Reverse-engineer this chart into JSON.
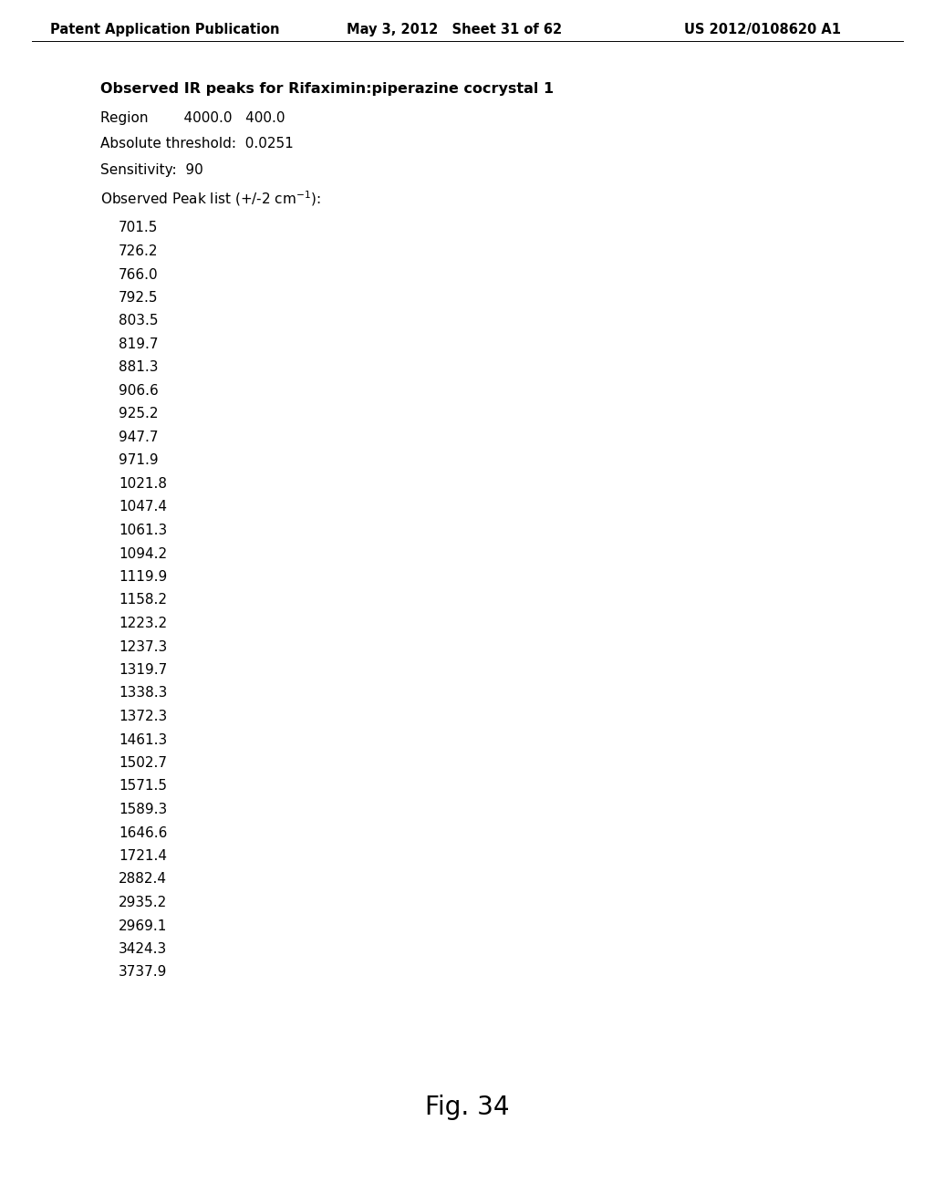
{
  "background_color": "#ffffff",
  "header_left": "Patent Application Publication",
  "header_middle": "May 3, 2012   Sheet 31 of 62",
  "header_right": "US 2012/0108620 A1",
  "title": "Observed IR peaks for Rifaximin:piperazine cocrystal 1",
  "line1": "Region        4000.0   400.0",
  "line2": "Absolute threshold:  0.0251",
  "line3": "Sensitivity:  90",
  "peaks": [
    "701.5",
    "726.2",
    "766.0",
    "792.5",
    "803.5",
    "819.7",
    "881.3",
    "906.6",
    "925.2",
    "947.7",
    "971.9",
    "1021.8",
    "1047.4",
    "1061.3",
    "1094.2",
    "1119.9",
    "1158.2",
    "1223.2",
    "1237.3",
    "1319.7",
    "1338.3",
    "1372.3",
    "1461.3",
    "1502.7",
    "1571.5",
    "1589.3",
    "1646.6",
    "1721.4",
    "2882.4",
    "2935.2",
    "2969.1",
    "3424.3",
    "3737.9"
  ],
  "fig_label": "Fig. 34",
  "header_fontsize": 10.5,
  "title_fontsize": 11.5,
  "body_fontsize": 11,
  "peak_fontsize": 11,
  "fig_label_fontsize": 20
}
